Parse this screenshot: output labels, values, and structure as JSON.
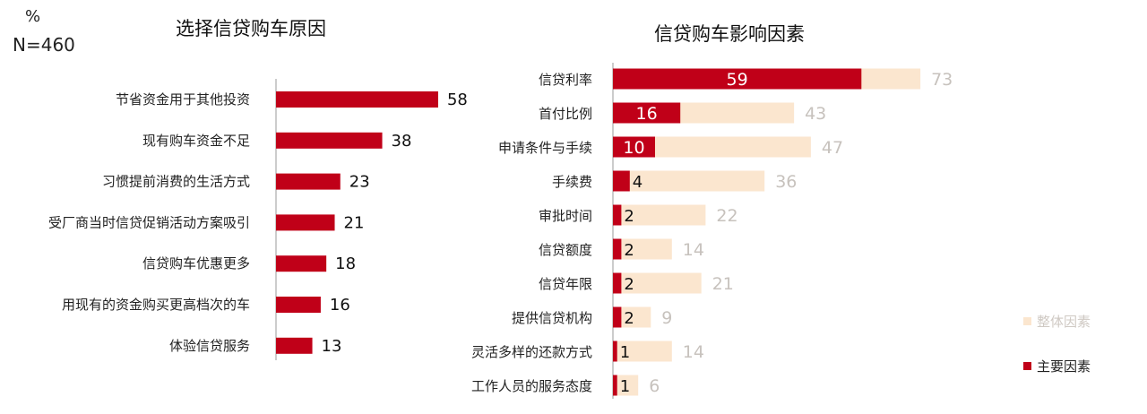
{
  "unit_label": "%",
  "sample_label": "N=460",
  "colors": {
    "main": "#c00018",
    "overall": "#fbe6cf",
    "light_label": "#c7c2bd"
  },
  "chart_data": [
    {
      "type": "bar",
      "orientation": "horizontal",
      "title": "选择信贷购车原因",
      "categories": [
        "节省资金用于其他投资",
        "现有购车资金不足",
        "习惯提前消费的生活方式",
        "受厂商当时信贷促销活动方案吸引",
        "信贷购车优惠更多",
        "用现有的资金购买更高档次的车",
        "体验信贷服务"
      ],
      "values": [
        58,
        38,
        23,
        21,
        18,
        16,
        13
      ]
    },
    {
      "type": "bar",
      "orientation": "horizontal",
      "title": "信贷购车影响因素",
      "categories": [
        "信贷利率",
        "首付比例",
        "申请条件与手续",
        "手续费",
        "审批时间",
        "信贷额度",
        "信贷年限",
        "提供信贷机构",
        "灵活多样的还款方式",
        "工作人员的服务态度"
      ],
      "series": [
        {
          "name": "整体因素",
          "values": [
            73,
            43,
            47,
            36,
            22,
            14,
            21,
            9,
            14,
            6
          ]
        },
        {
          "name": "主要因素",
          "values": [
            59,
            16,
            10,
            4,
            2,
            2,
            2,
            2,
            1,
            1
          ]
        }
      ],
      "legend": "right"
    }
  ]
}
